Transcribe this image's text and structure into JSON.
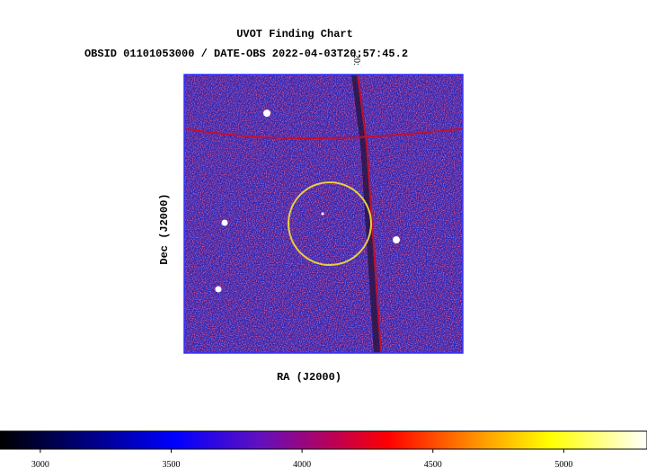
{
  "chart_data": {
    "type": "image",
    "title": "UVOT Finding Chart",
    "subtitle": "OBSID 01101053000 / DATE-OBS 2022-04-03T20:57:45.2",
    "xlabel": "RA (J2000)",
    "ylabel": "Dec (J2000)",
    "grid_label": "20:",
    "colorbar_lim": [
      2846,
      5318
    ],
    "colorbar_ticks": [
      3000,
      3500,
      4000,
      4500,
      5000
    ]
  }
}
